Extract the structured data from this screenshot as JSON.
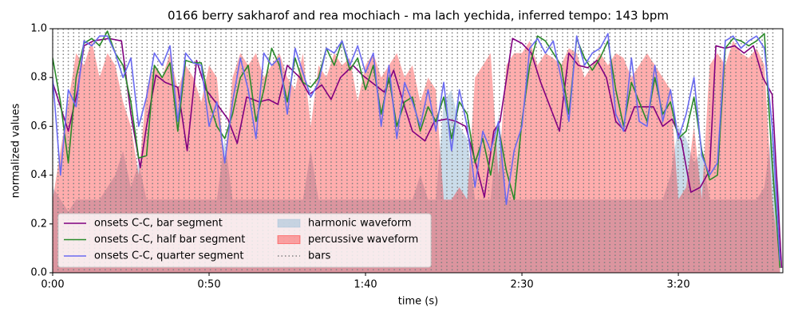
{
  "chart_data": {
    "type": "line",
    "title": "0166 berry sakharof and rea mochiach - ma lach yechida, inferred tempo: 143 bpm",
    "x_label": "time (s)",
    "y_label": "normalized values",
    "xlim": [
      0,
      233.4
    ],
    "ylim": [
      0,
      1
    ],
    "xticks": [
      {
        "value": 0,
        "label": "0:00"
      },
      {
        "value": 50,
        "label": "0:50"
      },
      {
        "value": 100,
        "label": "1:40"
      },
      {
        "value": 150,
        "label": "2:30"
      },
      {
        "value": 200,
        "label": "3:20"
      }
    ],
    "yticks": [
      {
        "value": 0,
        "label": "0.0"
      },
      0.2,
      0.4,
      0.6,
      0.8,
      {
        "value": 1,
        "label": "1.0"
      }
    ],
    "legend": "lower left",
    "x": [
      0,
      2.5,
      5,
      7.5,
      10,
      12.5,
      15,
      17.5,
      20,
      22.5,
      25,
      27.5,
      30,
      32.5,
      35,
      37.5,
      40,
      42.5,
      45,
      47.5,
      50,
      52.5,
      55,
      57.5,
      60,
      62.5,
      65,
      67.5,
      70,
      72.5,
      75,
      77.5,
      80,
      82.5,
      85,
      87.5,
      90,
      92.5,
      95,
      97.5,
      100,
      102.5,
      105,
      107.5,
      110,
      112.5,
      115,
      117.5,
      120,
      122.5,
      125,
      127.5,
      130,
      132.5,
      135,
      137.5,
      140,
      142.5,
      145,
      147.5,
      150,
      152.5,
      155,
      157.5,
      160,
      162.5,
      165,
      167.5,
      170,
      172.5,
      175,
      177.5,
      180,
      182.5,
      185,
      187.5,
      190,
      192.5,
      195,
      197.5,
      200,
      202.5,
      205,
      207.5,
      210,
      212.5,
      215,
      217.5,
      220,
      222.5,
      225,
      227.5,
      230,
      232.5
    ],
    "series": [
      {
        "name": "onsets C-C, bar segment",
        "style": "line",
        "color": "#800080",
        "x": [
          0,
          5,
          8,
          10,
          13,
          18,
          22,
          25,
          28,
          30,
          33,
          36,
          40,
          43,
          46,
          49,
          52,
          56,
          59,
          62,
          66,
          69,
          72,
          75,
          79,
          82,
          86,
          89,
          92,
          96,
          99,
          102,
          106,
          109,
          112,
          115,
          119,
          122,
          126,
          129,
          132,
          135,
          138,
          141,
          143,
          147,
          150,
          153,
          156,
          159,
          162,
          165,
          168,
          171,
          174,
          177,
          180,
          183,
          186,
          189,
          192,
          195,
          198,
          201,
          204,
          207,
          210,
          212,
          215,
          218,
          221,
          224,
          227,
          230,
          233
        ],
        "values": [
          0.78,
          0.58,
          0.75,
          0.93,
          0.95,
          0.96,
          0.95,
          0.65,
          0.43,
          0.6,
          0.81,
          0.78,
          0.76,
          0.5,
          0.87,
          0.75,
          0.7,
          0.63,
          0.53,
          0.72,
          0.7,
          0.71,
          0.69,
          0.85,
          0.8,
          0.73,
          0.77,
          0.71,
          0.8,
          0.85,
          0.81,
          0.78,
          0.74,
          0.83,
          0.7,
          0.58,
          0.54,
          0.62,
          0.63,
          0.62,
          0.6,
          0.46,
          0.31,
          0.58,
          0.62,
          0.96,
          0.94,
          0.9,
          0.78,
          0.68,
          0.58,
          0.9,
          0.85,
          0.84,
          0.87,
          0.8,
          0.62,
          0.58,
          0.68,
          0.68,
          0.68,
          0.6,
          0.63,
          0.54,
          0.33,
          0.35,
          0.42,
          0.93,
          0.92,
          0.93,
          0.9,
          0.93,
          0.8,
          0.73,
          0.02
        ]
      },
      {
        "name": "onsets C-C, half bar segment",
        "style": "line",
        "color": "#2a8a2a",
        "values": [
          0.88,
          0.7,
          0.45,
          0.8,
          0.94,
          0.96,
          0.93,
          0.99,
          0.9,
          0.85,
          0.7,
          0.47,
          0.48,
          0.85,
          0.8,
          0.86,
          0.58,
          0.87,
          0.86,
          0.86,
          0.7,
          0.6,
          0.55,
          0.65,
          0.8,
          0.85,
          0.62,
          0.75,
          0.92,
          0.85,
          0.7,
          0.88,
          0.78,
          0.76,
          0.8,
          0.92,
          0.85,
          0.95,
          0.83,
          0.88,
          0.75,
          0.85,
          0.65,
          0.8,
          0.6,
          0.7,
          0.72,
          0.58,
          0.68,
          0.62,
          0.72,
          0.55,
          0.7,
          0.65,
          0.45,
          0.55,
          0.4,
          0.6,
          0.42,
          0.3,
          0.62,
          0.85,
          0.97,
          0.95,
          0.9,
          0.85,
          0.65,
          0.96,
          0.88,
          0.83,
          0.88,
          0.95,
          0.75,
          0.6,
          0.78,
          0.7,
          0.62,
          0.8,
          0.65,
          0.7,
          0.55,
          0.58,
          0.72,
          0.5,
          0.38,
          0.4,
          0.92,
          0.96,
          0.95,
          0.93,
          0.95,
          0.98,
          0.45,
          0.02
        ]
      },
      {
        "name": "onsets C-C, quarter segment",
        "style": "line",
        "color": "#6a6af0",
        "values": [
          0.8,
          0.4,
          0.75,
          0.68,
          0.95,
          0.93,
          0.97,
          0.97,
          0.9,
          0.8,
          0.88,
          0.6,
          0.72,
          0.9,
          0.85,
          0.93,
          0.62,
          0.9,
          0.86,
          0.85,
          0.6,
          0.7,
          0.45,
          0.7,
          0.88,
          0.75,
          0.55,
          0.9,
          0.85,
          0.88,
          0.65,
          0.92,
          0.82,
          0.72,
          0.78,
          0.92,
          0.9,
          0.95,
          0.85,
          0.93,
          0.82,
          0.9,
          0.6,
          0.85,
          0.55,
          0.78,
          0.7,
          0.6,
          0.75,
          0.58,
          0.78,
          0.5,
          0.75,
          0.6,
          0.35,
          0.58,
          0.5,
          0.62,
          0.28,
          0.5,
          0.6,
          0.92,
          0.96,
          0.9,
          0.95,
          0.8,
          0.62,
          0.97,
          0.85,
          0.9,
          0.92,
          0.98,
          0.65,
          0.58,
          0.88,
          0.62,
          0.6,
          0.85,
          0.62,
          0.75,
          0.55,
          0.65,
          0.8,
          0.48,
          0.4,
          0.45,
          0.95,
          0.97,
          0.92,
          0.95,
          0.97,
          0.92,
          0.6,
          0.05
        ]
      },
      {
        "name": "harmonic waveform",
        "style": "area",
        "color": "#9fbfd8",
        "alpha": 0.55,
        "values": [
          0.35,
          0.3,
          0.25,
          0.3,
          0.3,
          0.3,
          0.3,
          0.35,
          0.4,
          0.5,
          0.35,
          0.45,
          0.3,
          0.3,
          0.3,
          0.3,
          0.3,
          0.3,
          0.3,
          0.3,
          0.3,
          0.3,
          0.55,
          0.3,
          0.3,
          0.3,
          0.3,
          0.3,
          0.3,
          0.3,
          0.3,
          0.3,
          0.3,
          0.5,
          0.3,
          0.3,
          0.3,
          0.3,
          0.3,
          0.3,
          0.3,
          0.3,
          0.3,
          0.3,
          0.3,
          0.3,
          0.3,
          0.4,
          0.3,
          0.3,
          0.7,
          0.75,
          0.6,
          0.55,
          0.3,
          0.3,
          0.3,
          0.65,
          0.3,
          0.3,
          0.3,
          0.3,
          0.3,
          0.3,
          0.3,
          0.3,
          0.3,
          0.3,
          0.3,
          0.3,
          0.3,
          0.3,
          0.3,
          0.3,
          0.3,
          0.3,
          0.3,
          0.3,
          0.3,
          0.4,
          0.6,
          0.55,
          0.45,
          0.5,
          0.3,
          0.3,
          0.3,
          0.3,
          0.3,
          0.3,
          0.3,
          0.35,
          0.6,
          0.3
        ]
      },
      {
        "name": "percussive waveform",
        "style": "area",
        "color": "#ff0000",
        "alpha": 0.32,
        "values": [
          0.3,
          0.5,
          0.7,
          0.9,
          0.85,
          0.95,
          0.8,
          0.9,
          0.85,
          0.7,
          0.6,
          0.4,
          0.75,
          0.85,
          0.8,
          0.9,
          0.75,
          0.85,
          0.8,
          0.7,
          0.85,
          0.8,
          0.45,
          0.8,
          0.9,
          0.85,
          0.9,
          0.8,
          0.85,
          0.9,
          0.8,
          0.75,
          0.9,
          0.6,
          0.85,
          0.8,
          0.9,
          0.85,
          0.88,
          0.7,
          0.85,
          0.9,
          0.8,
          0.85,
          0.9,
          0.8,
          0.85,
          0.7,
          0.8,
          0.75,
          0.3,
          0.3,
          0.35,
          0.3,
          0.8,
          0.85,
          0.9,
          0.4,
          0.85,
          0.9,
          0.9,
          0.95,
          0.85,
          0.9,
          0.88,
          0.85,
          0.92,
          0.9,
          0.8,
          0.85,
          0.9,
          0.85,
          0.9,
          0.88,
          0.8,
          0.85,
          0.9,
          0.85,
          0.8,
          0.75,
          0.3,
          0.35,
          0.6,
          0.3,
          0.85,
          0.9,
          0.85,
          0.95,
          0.9,
          0.88,
          0.92,
          0.85,
          0.3,
          0.05
        ]
      },
      {
        "name": "bars",
        "style": "vline",
        "color": "#808080",
        "x": [
          0,
          1.7,
          3.4,
          5.0,
          6.7,
          8.4,
          10.1,
          11.8,
          13.4,
          15.1,
          16.8,
          18.5,
          20.2,
          21.8,
          23.5,
          25.2,
          26.9,
          28.6,
          30.2,
          31.9,
          33.6,
          35.3,
          37.0,
          38.6,
          40.3,
          42.0,
          43.7,
          45.4,
          47.0,
          48.7,
          50.4,
          52.1,
          53.8,
          55.4,
          57.1,
          58.8,
          60.5,
          62.2,
          63.8,
          65.5,
          67.2,
          68.9,
          70.6,
          72.2,
          73.9,
          75.6,
          77.3,
          79.0,
          80.6,
          82.3,
          84.0,
          85.7,
          87.4,
          89.0,
          90.7,
          92.4,
          94.1,
          95.8,
          97.4,
          99.1,
          100.8,
          102.5,
          104.2,
          105.8,
          107.5,
          109.2,
          110.9,
          112.6,
          114.2,
          115.9,
          117.6,
          119.3,
          121.0,
          122.6,
          124.3,
          126.0,
          127.7,
          129.4,
          131.0,
          132.7,
          134.4,
          136.1,
          137.8,
          139.4,
          141.1,
          142.8,
          144.5,
          146.2,
          147.8,
          149.5,
          151.2,
          152.9,
          154.6,
          156.2,
          157.9,
          159.6,
          161.3,
          163.0,
          164.6,
          166.3,
          168.0,
          169.7,
          171.4,
          173.0,
          174.7,
          176.4,
          178.1,
          179.8,
          181.4,
          183.1,
          184.8,
          186.5,
          188.2,
          189.8,
          191.5,
          193.2,
          194.9,
          196.6,
          198.2,
          199.9,
          201.6,
          203.3,
          205.0,
          206.6,
          208.3,
          210.0,
          211.7,
          213.4,
          215.0,
          216.7,
          218.4,
          220.1,
          221.8,
          223.4,
          225.1,
          226.8,
          228.5,
          230.2
        ]
      }
    ]
  }
}
